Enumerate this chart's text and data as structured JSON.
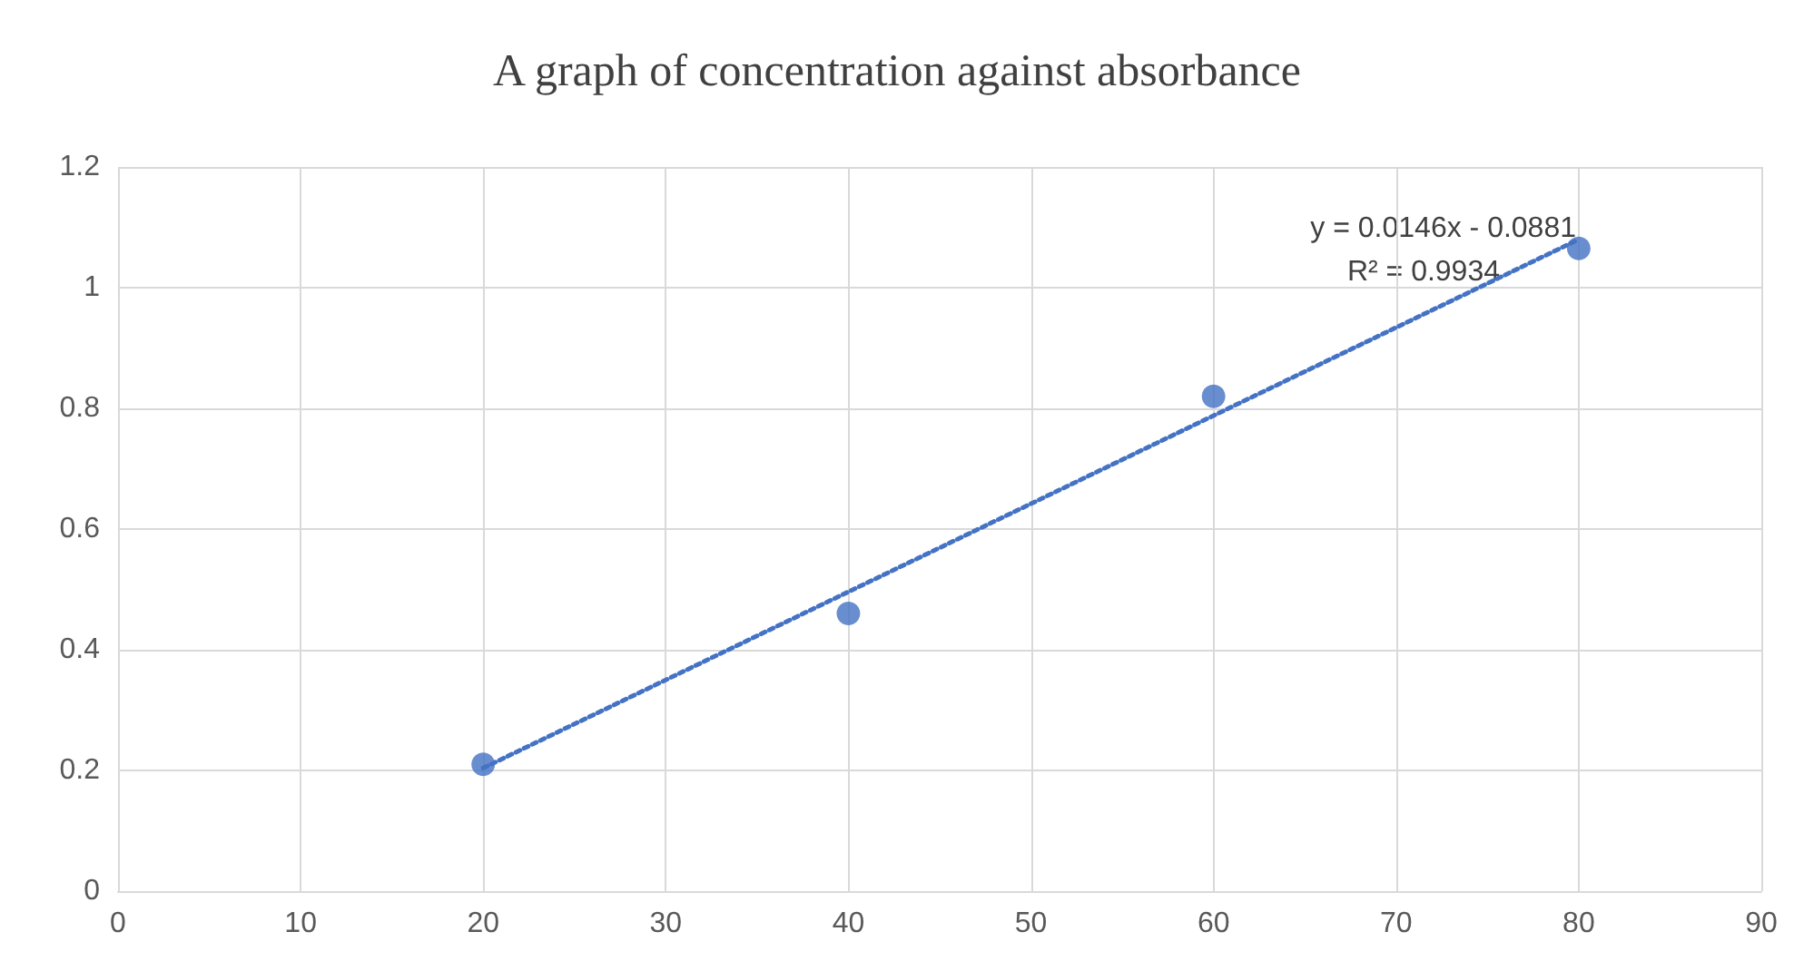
{
  "chart_data": {
    "type": "scatter",
    "title": "A graph of concentration against absorbance",
    "xlim": [
      0,
      90
    ],
    "xticks": [
      0,
      10,
      20,
      30,
      40,
      50,
      60,
      70,
      80,
      90
    ],
    "ylim": [
      0,
      1.2
    ],
    "yticks": [
      0,
      0.2,
      0.4,
      0.6,
      0.8,
      1,
      1.2
    ],
    "grid": true,
    "series": [
      {
        "color": "#4472c4",
        "marker": "circle",
        "x": [
          20,
          40,
          60,
          80
        ],
        "values": [
          0.21,
          0.46,
          0.82,
          1.065
        ]
      },
      {
        "type": "line",
        "color": "#4472c4",
        "line_style": "dotted",
        "marker": "none",
        "x": [
          20,
          80
        ],
        "values": [
          0.204,
          1.08
        ]
      }
    ],
    "annotations": [
      "y = 0.0146x - 0.0881",
      "R² = 0.9934"
    ]
  }
}
